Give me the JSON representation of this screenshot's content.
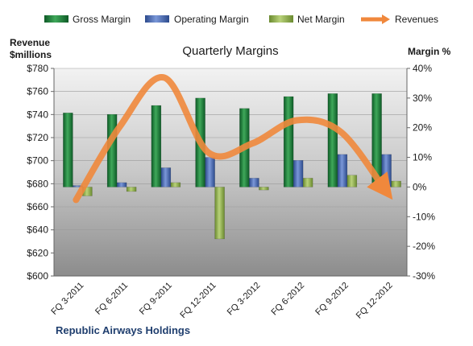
{
  "chart_data": {
    "type": "bar",
    "title": "Quarterly Margins",
    "company": "Republic Airways Holdings",
    "categories": [
      "FQ 3-2011",
      "FQ 6-2011",
      "FQ 9-2011",
      "FQ 12-2011",
      "FQ 3-2012",
      "FQ 6-2012",
      "FQ 9-2012",
      "FQ 12-2012"
    ],
    "ylabel_left": [
      "Revenue",
      "$millions"
    ],
    "ylabel_right": "Margin %",
    "left_axis": {
      "min": 600,
      "max": 780,
      "ticks": [
        "$600",
        "$620",
        "$640",
        "$660",
        "$680",
        "$700",
        "$720",
        "$740",
        "$760",
        "$780"
      ]
    },
    "right_axis": {
      "min": -30,
      "max": 40,
      "ticks": [
        "-30%",
        "-20%",
        "-10%",
        "0%",
        "10%",
        "20%",
        "30%",
        "40%"
      ]
    },
    "series": [
      {
        "name": "Gross Margin",
        "type": "bar",
        "axis": "right",
        "color": "#1f7a3c",
        "values": [
          25,
          24.5,
          27.5,
          30,
          26.5,
          30.5,
          31.5,
          31.5
        ]
      },
      {
        "name": "Operating Margin",
        "type": "bar",
        "axis": "right",
        "color": "#4a6bb5",
        "values": [
          0.5,
          1.5,
          6.5,
          10,
          3,
          9,
          11,
          11
        ]
      },
      {
        "name": "Net Margin",
        "type": "bar",
        "axis": "right",
        "color": "#8fae4f",
        "values": [
          -3,
          -1.5,
          1.5,
          -17.5,
          -1,
          3,
          4,
          2
        ]
      },
      {
        "name": "Revenues",
        "type": "line",
        "axis": "left",
        "color": "#f0883c",
        "values": [
          666,
          730,
          772,
          707,
          715,
          735,
          725,
          675
        ]
      }
    ],
    "legend_position": "top",
    "grid": true
  }
}
